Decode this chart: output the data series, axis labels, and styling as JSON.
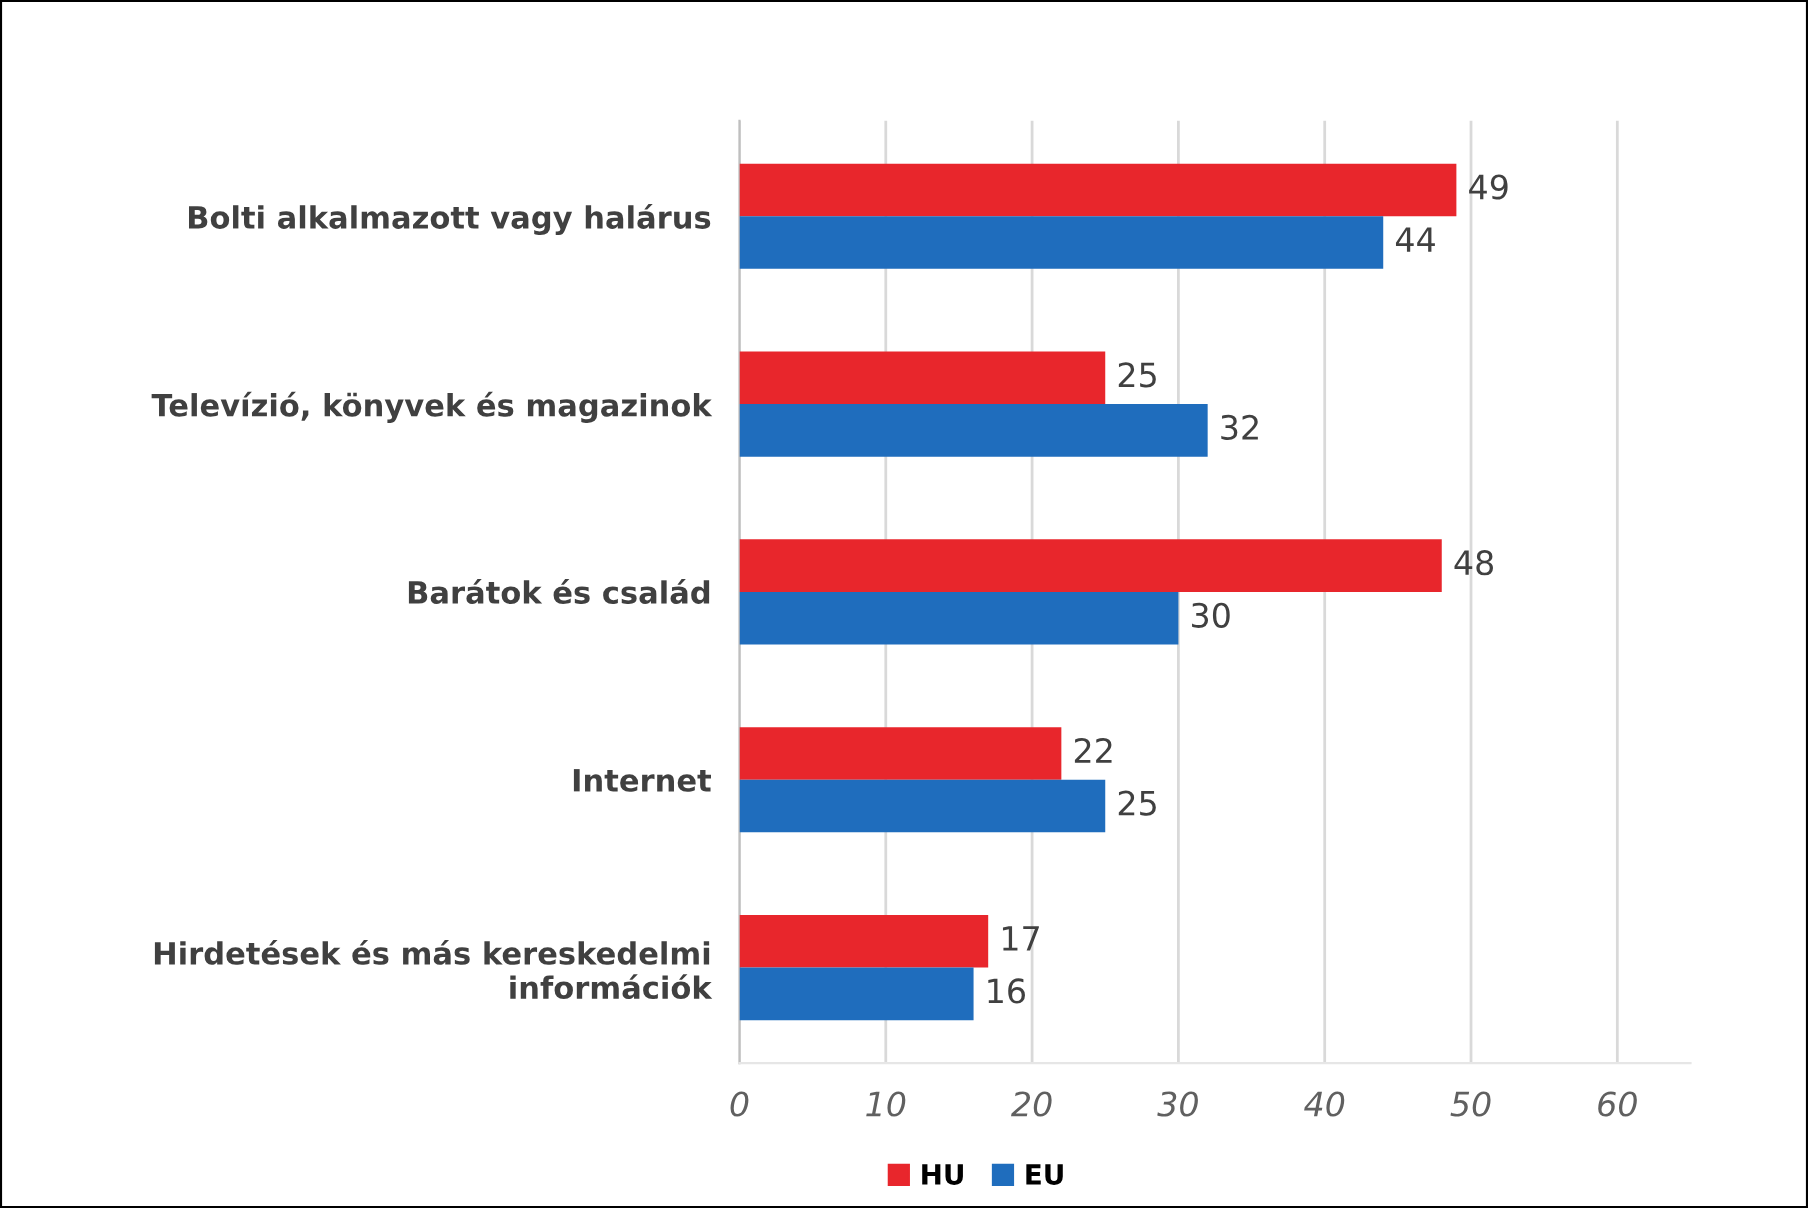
{
  "chart_data": {
    "type": "bar",
    "orientation": "horizontal",
    "categories": [
      "Bolti alkalmazott vagy halárus",
      "Televízió, könyvek és magazinok",
      "Barátok és család",
      "Internet",
      "Hirdetések és más kereskedelmi\ninformációk"
    ],
    "series": [
      {
        "name": "HU",
        "color": "#e8262c",
        "values": [
          49,
          25,
          48,
          22,
          17
        ]
      },
      {
        "name": "EU",
        "color": "#1f6dbd",
        "values": [
          44,
          32,
          30,
          25,
          16
        ]
      }
    ],
    "xlim": [
      0,
      65
    ],
    "xticks": [
      0,
      10,
      20,
      30,
      40,
      50,
      60
    ],
    "grid": "x",
    "legend": "bottom",
    "data_labels": true
  }
}
